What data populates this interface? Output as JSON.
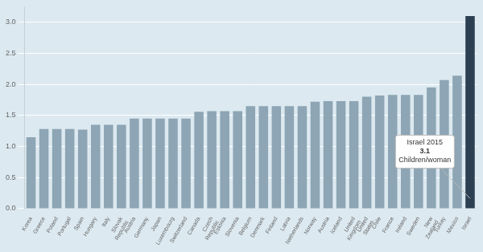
{
  "chart_data": {
    "type": "bar",
    "categories": [
      "Korea",
      "Greece",
      "Poland",
      "Portugal",
      "Spain",
      "Hungary",
      "Italy",
      "Slovak\nRepublic",
      "Austria",
      "Germany",
      "Japan",
      "Luxembourg",
      "Switzerland",
      "Canada",
      "Czech\nRepublic",
      "Estonia",
      "Slovenia",
      "Belgium",
      "Denmark",
      "Finland",
      "Latvia",
      "Netherlands",
      "Norway",
      "Austria",
      "Iceland",
      "United\nKingdom",
      "United\nStates",
      "Chile",
      "France",
      "Ireland",
      "Sweden",
      "New\nZealand",
      "Turkey",
      "Mexico",
      "Israel"
    ],
    "values": [
      1.15,
      1.28,
      1.28,
      1.28,
      1.27,
      1.35,
      1.35,
      1.35,
      1.45,
      1.45,
      1.45,
      1.45,
      1.45,
      1.56,
      1.57,
      1.57,
      1.57,
      1.65,
      1.65,
      1.65,
      1.65,
      1.65,
      1.72,
      1.73,
      1.73,
      1.73,
      1.8,
      1.82,
      1.83,
      1.83,
      1.83,
      1.95,
      2.07,
      2.14,
      3.1
    ],
    "colors": [
      "#8da5b4",
      "#8da5b4",
      "#8da5b4",
      "#8da5b4",
      "#8da5b4",
      "#8da5b4",
      "#8da5b4",
      "#8da5b4",
      "#8da5b4",
      "#8da5b4",
      "#8da5b4",
      "#8da5b4",
      "#8da5b4",
      "#8da5b4",
      "#8da5b4",
      "#8da5b4",
      "#8da5b4",
      "#8da5b4",
      "#8da5b4",
      "#8da5b4",
      "#8da5b4",
      "#8da5b4",
      "#8da5b4",
      "#8da5b4",
      "#8da5b4",
      "#8da5b4",
      "#8da5b4",
      "#8da5b4",
      "#8da5b4",
      "#8da5b4",
      "#8da5b4",
      "#8da5b4",
      "#8da5b4",
      "#8da5b4",
      "#2d3f52"
    ],
    "ylim": [
      0,
      3.25
    ],
    "yticks": [
      {
        "value": 0.0,
        "label": "0.0"
      },
      0.5,
      {
        "value": 1.0,
        "label": "1.0"
      },
      1.5,
      {
        "value": 2.0,
        "label": "2.0"
      },
      2.5,
      {
        "value": 3.0,
        "label": "3.0"
      }
    ],
    "grid": true,
    "annotations": [
      "Israel 2015\n3.1\nChildren/woman"
    ]
  }
}
